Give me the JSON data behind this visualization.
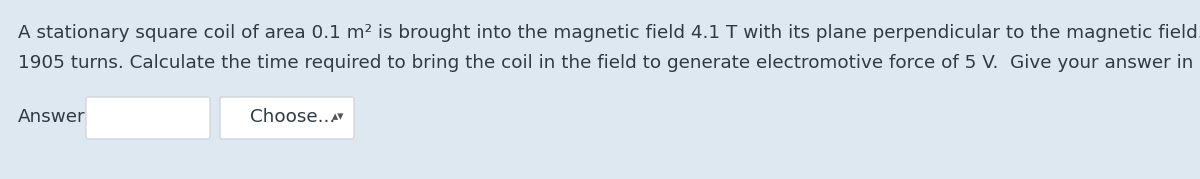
{
  "background_color": "#dde8f0",
  "text_line1": "A stationary square coil of area 0.1 m² is brought into the magnetic field 4.1 T with its plane perpendicular to the magnetic field.  The coil has",
  "text_line2": "1905 turns. Calculate the time required to bring the coil in the field to generate electromotive force of 5 V.  Give your answer in SI units.",
  "answer_label": "Answer:",
  "choose_label": "Choose... ",
  "text_color": "#2e3a45",
  "box_bg": "#ffffff",
  "box_border": "#c8d0d8",
  "font_size": 13.2,
  "answer_font_size": 13.2,
  "choose_arrow": "▴\n▾"
}
